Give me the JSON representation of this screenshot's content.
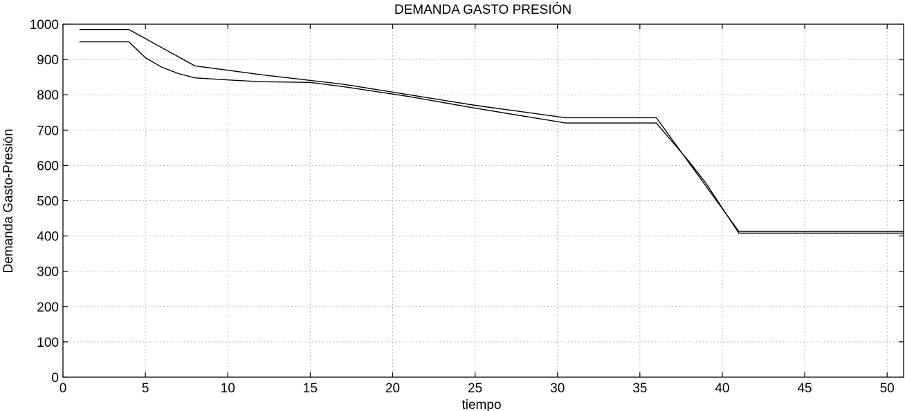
{
  "chart_data": {
    "type": "line",
    "title": "DEMANDA GASTO PRESIÓN",
    "xlabel": "tiempo",
    "ylabel": "Demanda Gasto-Presión",
    "xlim": [
      0,
      51
    ],
    "ylim": [
      0,
      1000
    ],
    "xticks": [
      0,
      5,
      10,
      15,
      20,
      25,
      30,
      35,
      40,
      45,
      50
    ],
    "yticks": [
      0,
      100,
      200,
      300,
      400,
      500,
      600,
      700,
      800,
      900,
      1000
    ],
    "grid": true,
    "legend": "none",
    "series": [
      {
        "color": "#000000",
        "x": [
          1,
          4,
          8,
          12,
          17,
          21,
          25,
          30.5,
          31,
          36,
          41,
          51
        ],
        "y": [
          985,
          985,
          882,
          857,
          830,
          800,
          770,
          735,
          735,
          735,
          413,
          413
        ]
      },
      {
        "color": "#000000",
        "x": [
          1,
          4,
          5,
          6,
          7,
          8,
          10,
          12,
          15,
          17,
          21,
          25,
          30.5,
          31,
          36,
          38,
          39,
          41,
          51
        ],
        "y": [
          950,
          950,
          905,
          878,
          860,
          848,
          842,
          837,
          835,
          823,
          795,
          762,
          720,
          720,
          720,
          610,
          550,
          408,
          408
        ]
      }
    ]
  }
}
